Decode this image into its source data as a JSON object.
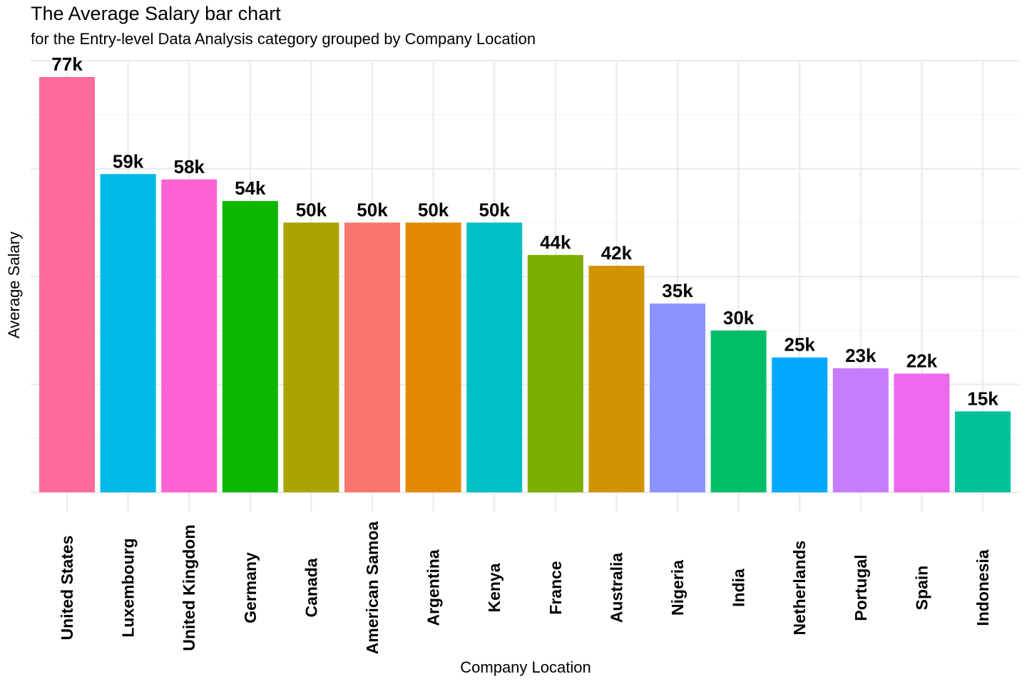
{
  "chart_data": {
    "type": "bar",
    "title": "The Average Salary bar chart",
    "subtitle": "for the Entry-level Data Analysis category grouped by Company Location",
    "xlabel": "Company Location",
    "ylabel": "Average Salary",
    "ylim": [
      0,
      80000
    ],
    "grid": true,
    "legend": "none",
    "y_tick_labels_shown": false,
    "categories": [
      "United States",
      "Luxembourg",
      "United Kingdom",
      "Germany",
      "Canada",
      "American Samoa",
      "Argentina",
      "Kenya",
      "France",
      "Australia",
      "Nigeria",
      "India",
      "Netherlands",
      "Portugal",
      "Spain",
      "Indonesia"
    ],
    "values": [
      77000,
      59000,
      58000,
      54000,
      50000,
      50000,
      50000,
      50000,
      44000,
      42000,
      35000,
      30000,
      25000,
      23000,
      22000,
      15000
    ],
    "data_labels": [
      "77k",
      "59k",
      "58k",
      "54k",
      "50k",
      "50k",
      "50k",
      "50k",
      "44k",
      "42k",
      "35k",
      "30k",
      "25k",
      "23k",
      "22k",
      "15k"
    ],
    "colors": [
      "#FF6C9C",
      "#00B8E5",
      "#FF62D3",
      "#0CB702",
      "#ABA300",
      "#F8766D",
      "#E38900",
      "#00BFC4",
      "#7CAE00",
      "#CF9400",
      "#8B93FF",
      "#00BE67",
      "#00A9FF",
      "#C77CFF",
      "#ED68ED",
      "#00C19A"
    ]
  }
}
